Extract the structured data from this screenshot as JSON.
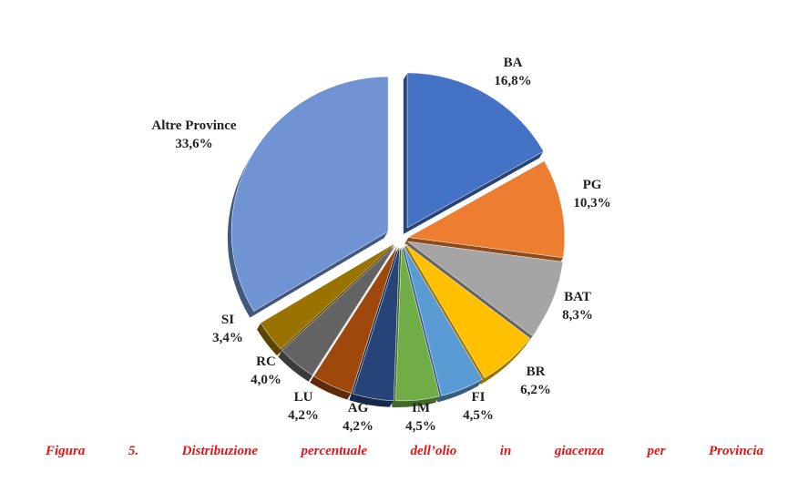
{
  "chart_data": {
    "type": "pie",
    "style": "3d-exploded",
    "start": "12 o'clock, clockwise",
    "slices": [
      {
        "label": "BA",
        "value": 16.8,
        "text": "16,8%",
        "color": "#4472C4"
      },
      {
        "label": "PG",
        "value": 10.3,
        "text": "10,3%",
        "color": "#ED7D31"
      },
      {
        "label": "BAT",
        "value": 8.3,
        "text": "8,3%",
        "color": "#A5A5A5"
      },
      {
        "label": "BR",
        "value": 6.2,
        "text": "6,2%",
        "color": "#FFC000"
      },
      {
        "label": "FI",
        "value": 4.5,
        "text": "4,5%",
        "color": "#5B9BD5"
      },
      {
        "label": "IM",
        "value": 4.5,
        "text": "4,5%",
        "color": "#70AD47"
      },
      {
        "label": "AG",
        "value": 4.2,
        "text": "4,2%",
        "color": "#264478"
      },
      {
        "label": "LU",
        "value": 4.2,
        "text": "4,2%",
        "color": "#9E480E"
      },
      {
        "label": "RC",
        "value": 4.0,
        "text": "4,0%",
        "color": "#636363"
      },
      {
        "label": "SI",
        "value": 3.4,
        "text": "3,4%",
        "color": "#997300"
      },
      {
        "label": "Altre Province",
        "value": 33.6,
        "text": "33,6%",
        "color": "#6F93D3"
      }
    ]
  },
  "caption": "Figura 5. Distribuzione percentuale dell’olio in giacenza per Provincia",
  "caption_color": "#e0161b"
}
